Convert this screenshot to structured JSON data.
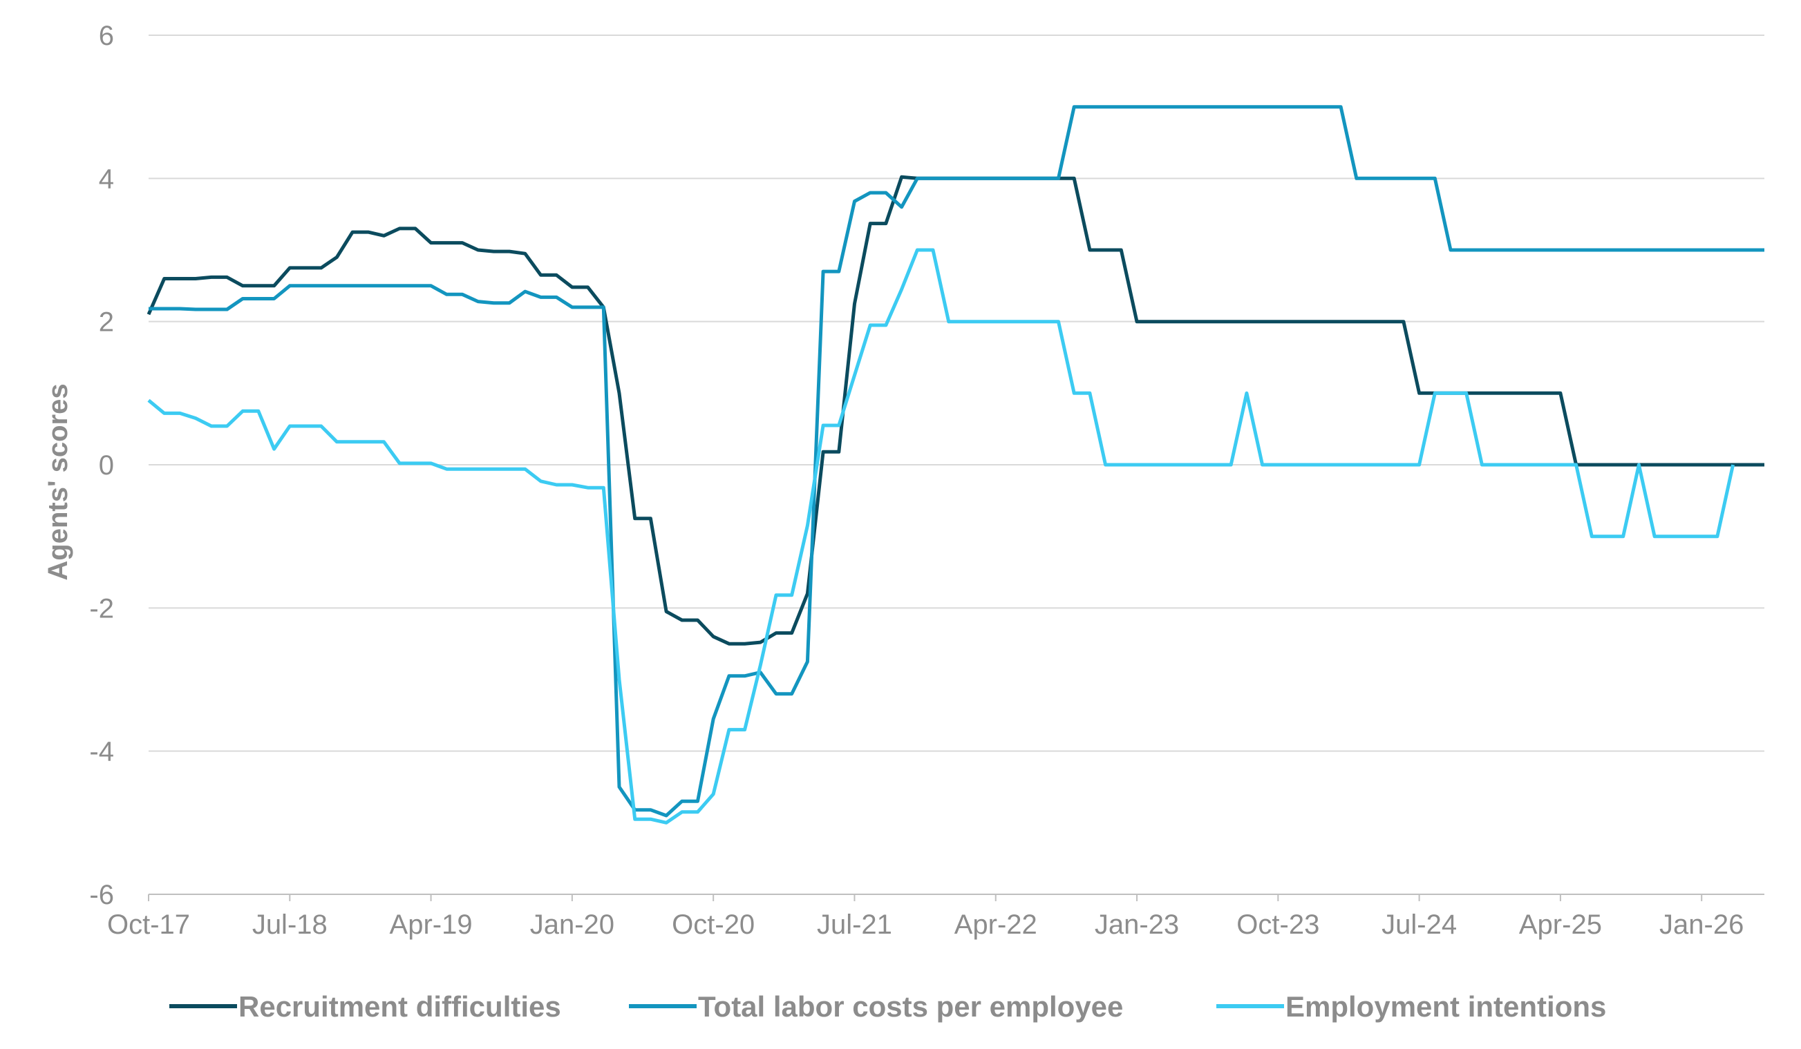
{
  "chart_data": {
    "type": "line",
    "ylabel": "Agents' scores",
    "xlabel": "",
    "ylim": [
      -6,
      6
    ],
    "yticks": [
      -6,
      -4,
      -2,
      0,
      2,
      4,
      6
    ],
    "xrange_month_index": [
      0,
      103
    ],
    "xticks": [
      {
        "label": "Oct-17",
        "i": 0
      },
      {
        "label": "Jul-18",
        "i": 9
      },
      {
        "label": "Apr-19",
        "i": 18
      },
      {
        "label": "Jan-20",
        "i": 27
      },
      {
        "label": "Oct-20",
        "i": 36
      },
      {
        "label": "Jul-21",
        "i": 45
      },
      {
        "label": "Apr-22",
        "i": 54
      },
      {
        "label": "Jan-23",
        "i": 63
      },
      {
        "label": "Oct-23",
        "i": 72
      },
      {
        "label": "Jul-24",
        "i": 81
      },
      {
        "label": "Apr-25",
        "i": 90
      },
      {
        "label": "Jan-26",
        "i": 99
      }
    ],
    "legend_position": "bottom",
    "grid": "horizontal",
    "series": [
      {
        "name": "Recruitment difficulties",
        "color": "#0b4b5e",
        "points": [
          [
            0,
            2.1
          ],
          [
            1,
            2.6
          ],
          [
            2,
            2.6
          ],
          [
            3,
            2.6
          ],
          [
            4,
            2.62
          ],
          [
            5,
            2.62
          ],
          [
            6,
            2.5
          ],
          [
            7,
            2.5
          ],
          [
            8,
            2.5
          ],
          [
            9,
            2.75
          ],
          [
            10,
            2.75
          ],
          [
            11,
            2.75
          ],
          [
            12,
            2.9
          ],
          [
            13,
            3.25
          ],
          [
            14,
            3.25
          ],
          [
            15,
            3.2
          ],
          [
            16,
            3.3
          ],
          [
            17,
            3.3
          ],
          [
            18,
            3.1
          ],
          [
            19,
            3.1
          ],
          [
            20,
            3.1
          ],
          [
            21,
            3.0
          ],
          [
            22,
            2.98
          ],
          [
            23,
            2.98
          ],
          [
            24,
            2.95
          ],
          [
            25,
            2.65
          ],
          [
            26,
            2.65
          ],
          [
            27,
            2.48
          ],
          [
            28,
            2.48
          ],
          [
            29,
            2.2
          ],
          [
            30,
            1.0
          ],
          [
            31,
            -0.75
          ],
          [
            32,
            -0.75
          ],
          [
            33,
            -2.05
          ],
          [
            34,
            -2.17
          ],
          [
            35,
            -2.17
          ],
          [
            36,
            -2.4
          ],
          [
            37,
            -2.5
          ],
          [
            38,
            -2.5
          ],
          [
            39,
            -2.48
          ],
          [
            40,
            -2.35
          ],
          [
            41,
            -2.35
          ],
          [
            42,
            -1.8
          ],
          [
            43,
            0.18
          ],
          [
            44,
            0.18
          ],
          [
            45,
            2.25
          ],
          [
            46,
            3.37
          ],
          [
            47,
            3.37
          ],
          [
            48,
            4.02
          ],
          [
            49,
            4.0
          ],
          [
            50,
            4.0
          ],
          [
            58,
            4.0
          ],
          [
            59,
            4.0
          ],
          [
            60,
            3.0
          ],
          [
            61,
            3.0
          ],
          [
            62,
            3.0
          ],
          [
            63,
            2.0
          ],
          [
            80,
            2.0
          ],
          [
            81,
            1.0
          ],
          [
            90,
            1.0
          ],
          [
            91,
            0.0
          ],
          [
            103,
            0.0
          ]
        ]
      },
      {
        "name": "Total labor costs per employee",
        "color": "#1395bf",
        "points": [
          [
            0,
            2.18
          ],
          [
            1,
            2.18
          ],
          [
            2,
            2.18
          ],
          [
            3,
            2.17
          ],
          [
            4,
            2.17
          ],
          [
            5,
            2.17
          ],
          [
            6,
            2.32
          ],
          [
            7,
            2.32
          ],
          [
            8,
            2.32
          ],
          [
            9,
            2.5
          ],
          [
            10,
            2.5
          ],
          [
            18,
            2.5
          ],
          [
            19,
            2.38
          ],
          [
            20,
            2.38
          ],
          [
            21,
            2.28
          ],
          [
            22,
            2.26
          ],
          [
            23,
            2.26
          ],
          [
            24,
            2.42
          ],
          [
            25,
            2.34
          ],
          [
            26,
            2.34
          ],
          [
            27,
            2.2
          ],
          [
            28,
            2.2
          ],
          [
            29,
            2.2
          ],
          [
            30,
            -4.5
          ],
          [
            31,
            -4.82
          ],
          [
            32,
            -4.82
          ],
          [
            33,
            -4.9
          ],
          [
            34,
            -4.7
          ],
          [
            35,
            -4.7
          ],
          [
            36,
            -3.55
          ],
          [
            37,
            -2.95
          ],
          [
            38,
            -2.95
          ],
          [
            39,
            -2.9
          ],
          [
            40,
            -3.2
          ],
          [
            41,
            -3.2
          ],
          [
            42,
            -2.75
          ],
          [
            43,
            2.7
          ],
          [
            44,
            2.7
          ],
          [
            45,
            3.68
          ],
          [
            46,
            3.8
          ],
          [
            47,
            3.8
          ],
          [
            48,
            3.6
          ],
          [
            49,
            4.0
          ],
          [
            58,
            4.0
          ],
          [
            59,
            5.0
          ],
          [
            76,
            5.0
          ],
          [
            77,
            4.0
          ],
          [
            82,
            4.0
          ],
          [
            83,
            3.0
          ],
          [
            103,
            3.0
          ]
        ]
      },
      {
        "name": "Employment intentions",
        "color": "#3ccbf2",
        "points": [
          [
            0,
            0.9
          ],
          [
            1,
            0.72
          ],
          [
            2,
            0.72
          ],
          [
            3,
            0.65
          ],
          [
            4,
            0.54
          ],
          [
            5,
            0.54
          ],
          [
            6,
            0.75
          ],
          [
            7,
            0.75
          ],
          [
            8,
            0.22
          ],
          [
            9,
            0.54
          ],
          [
            10,
            0.54
          ],
          [
            11,
            0.54
          ],
          [
            12,
            0.32
          ],
          [
            13,
            0.32
          ],
          [
            14,
            0.32
          ],
          [
            15,
            0.32
          ],
          [
            16,
            0.02
          ],
          [
            17,
            0.02
          ],
          [
            18,
            0.02
          ],
          [
            19,
            -0.06
          ],
          [
            20,
            -0.06
          ],
          [
            24,
            -0.06
          ],
          [
            25,
            -0.23
          ],
          [
            26,
            -0.28
          ],
          [
            27,
            -0.28
          ],
          [
            28,
            -0.32
          ],
          [
            29,
            -0.32
          ],
          [
            30,
            -3.0
          ],
          [
            31,
            -4.95
          ],
          [
            32,
            -4.95
          ],
          [
            33,
            -5.0
          ],
          [
            34,
            -4.85
          ],
          [
            35,
            -4.85
          ],
          [
            36,
            -4.6
          ],
          [
            37,
            -3.7
          ],
          [
            38,
            -3.7
          ],
          [
            39,
            -2.8
          ],
          [
            40,
            -1.82
          ],
          [
            41,
            -1.82
          ],
          [
            42,
            -0.85
          ],
          [
            43,
            0.55
          ],
          [
            44,
            0.55
          ],
          [
            45,
            1.25
          ],
          [
            46,
            1.95
          ],
          [
            47,
            1.95
          ],
          [
            48,
            2.45
          ],
          [
            49,
            3.0
          ],
          [
            50,
            3.0
          ],
          [
            51,
            2.0
          ],
          [
            58,
            2.0
          ],
          [
            59,
            1.0
          ],
          [
            60,
            1.0
          ],
          [
            61,
            0.0
          ],
          [
            69,
            0.0
          ],
          [
            70,
            1.0
          ],
          [
            71,
            0.0
          ],
          [
            81,
            0.0
          ],
          [
            82,
            1.0
          ],
          [
            84,
            1.0
          ],
          [
            85,
            0.0
          ],
          [
            91,
            0.0
          ],
          [
            92,
            -1.0
          ],
          [
            94,
            -1.0
          ],
          [
            95,
            0.0
          ],
          [
            96,
            -1.0
          ],
          [
            100,
            -1.0
          ],
          [
            101,
            0.0
          ]
        ]
      }
    ]
  }
}
